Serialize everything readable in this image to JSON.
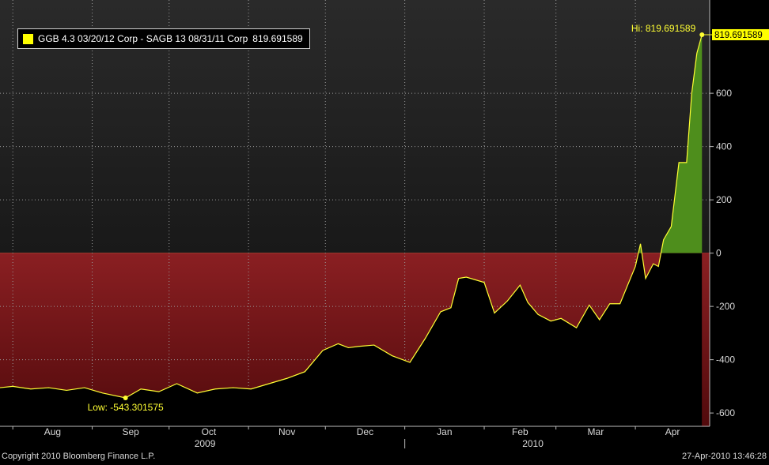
{
  "legend": {
    "label": "GGB 4.3 03/20/12 Corp - SAGB 13 08/31/11 Corp",
    "value": "819.691589",
    "swatch_color": "#ffff00"
  },
  "footer": {
    "copyright": "Copyright 2010 Bloomberg Finance L.P.",
    "timestamp": "27-Apr-2010 13:46:28"
  },
  "chart_data": {
    "type": "area",
    "x_range": [
      "2009-07-27",
      "2010-04-30"
    ],
    "ylim": [
      -650,
      950
    ],
    "yticks": [
      600,
      400,
      200,
      0,
      -200,
      -400,
      -600
    ],
    "ytick_labels": [
      "600",
      "400",
      "200",
      "0",
      "-200",
      "-400",
      "-600"
    ],
    "grid": true,
    "month_labels": [
      {
        "label": "Aug",
        "date": "2009-08-01"
      },
      {
        "label": "Sep",
        "date": "2009-09-01"
      },
      {
        "label": "Oct",
        "date": "2009-10-01"
      },
      {
        "label": "Nov",
        "date": "2009-11-01"
      },
      {
        "label": "Dec",
        "date": "2009-12-01"
      },
      {
        "label": "Jan",
        "date": "2010-01-01"
      },
      {
        "label": "Feb",
        "date": "2010-02-01"
      },
      {
        "label": "Mar",
        "date": "2010-03-01"
      },
      {
        "label": "Apr",
        "date": "2010-04-01"
      }
    ],
    "year_labels": [
      {
        "label": "2009",
        "date": "2009-10-15"
      },
      {
        "label": "2010",
        "date": "2010-02-20"
      }
    ],
    "year_divider_date": "2010-01-01",
    "annotations": {
      "high": {
        "label": "Hi: 819.691589",
        "date": "2010-04-27",
        "value": 819.691589
      },
      "low": {
        "label": "Low: -543.301575",
        "date": "2009-09-14",
        "value": -543.301575
      },
      "last_value_label": "819.691589"
    },
    "colors": {
      "line": "#ffff33",
      "positive_fill": "#4e8e1c",
      "negative_fill": "#8a1a1e",
      "last_value_box": "#ffff00"
    },
    "series": [
      {
        "x": [
          "2009-07-27",
          "2009-08-01",
          "2009-08-08",
          "2009-08-15",
          "2009-08-22",
          "2009-08-29",
          "2009-09-05",
          "2009-09-14",
          "2009-09-20",
          "2009-09-27",
          "2009-10-04",
          "2009-10-12",
          "2009-10-19",
          "2009-10-26",
          "2009-11-02",
          "2009-11-09",
          "2009-11-16",
          "2009-11-23",
          "2009-11-30",
          "2009-12-06",
          "2009-12-10",
          "2009-12-14",
          "2009-12-20",
          "2009-12-27",
          "2010-01-03",
          "2010-01-09",
          "2010-01-15",
          "2010-01-19",
          "2010-01-22",
          "2010-01-25",
          "2010-02-01",
          "2010-02-05",
          "2010-02-10",
          "2010-02-15",
          "2010-02-18",
          "2010-02-22",
          "2010-02-27",
          "2010-03-03",
          "2010-03-09",
          "2010-03-14",
          "2010-03-18",
          "2010-03-22",
          "2010-03-26",
          "2010-04-01",
          "2010-04-03",
          "2010-04-05",
          "2010-04-08",
          "2010-04-10",
          "2010-04-12",
          "2010-04-15",
          "2010-04-18",
          "2010-04-21",
          "2010-04-23",
          "2010-04-25",
          "2010-04-27"
        ],
        "values": [
          -505,
          -500,
          -510,
          -505,
          -515,
          -505,
          -525,
          -543.301575,
          -510,
          -520,
          -490,
          -525,
          -510,
          -505,
          -510,
          -490,
          -470,
          -445,
          -365,
          -340,
          -355,
          -350,
          -345,
          -385,
          -410,
          -320,
          -220,
          -205,
          -95,
          -90,
          -110,
          -225,
          -180,
          -120,
          -185,
          -230,
          -255,
          -245,
          -280,
          -195,
          -250,
          -190,
          -190,
          -50,
          35,
          -95,
          -40,
          -50,
          50,
          100,
          340,
          340,
          600,
          750,
          819.691589
        ]
      }
    ]
  }
}
